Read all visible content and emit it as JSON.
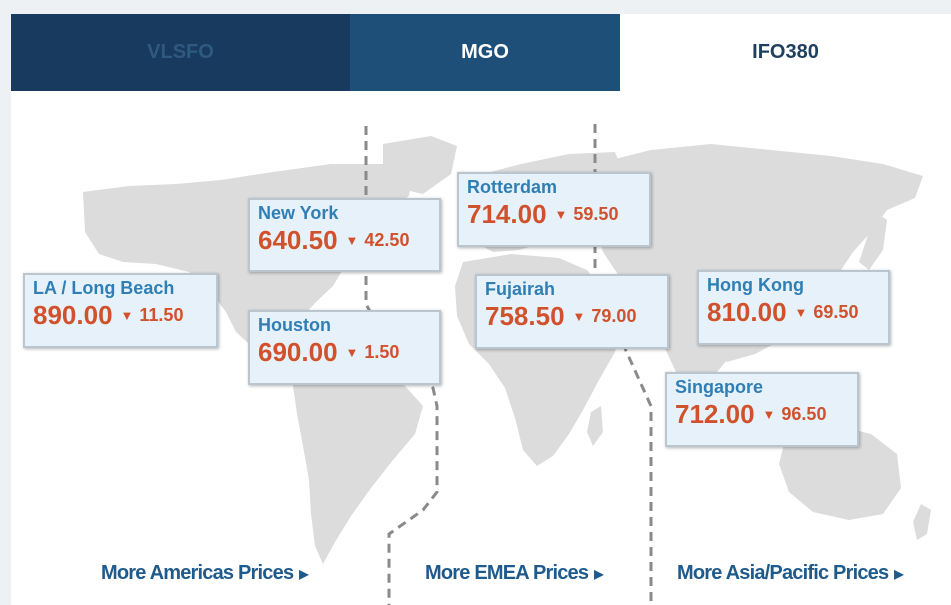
{
  "tabs": [
    {
      "label": "VLSFO"
    },
    {
      "label": "MGO"
    },
    {
      "label": "IFO380"
    }
  ],
  "ports": {
    "la_long_beach": {
      "name": "LA / Long Beach",
      "price": "890.00",
      "change": "11.50"
    },
    "new_york": {
      "name": "New York",
      "price": "640.50",
      "change": "42.50"
    },
    "houston": {
      "name": "Houston",
      "price": "690.00",
      "change": "1.50"
    },
    "rotterdam": {
      "name": "Rotterdam",
      "price": "714.00",
      "change": "59.50"
    },
    "fujairah": {
      "name": "Fujairah",
      "price": "758.50",
      "change": "79.00"
    },
    "hong_kong": {
      "name": "Hong Kong",
      "price": "810.00",
      "change": "69.50"
    },
    "singapore": {
      "name": "Singapore",
      "price": "712.00",
      "change": "96.50"
    }
  },
  "links": {
    "americas": "More Americas Prices",
    "emea": "More EMEA Prices",
    "asia_pacific": "More Asia/Pacific Prices"
  },
  "icons": {
    "down_arrow": "triangle-down-icon",
    "link_arrow": "triangle-right-icon"
  },
  "colors": {
    "tab_active": "#1e4f79",
    "tab_dark": "#173a5e",
    "city_blue": "#2f7fb5",
    "price_orange": "#d0512b",
    "link_blue": "#1f5a8c",
    "card_bg": "#e6f1f9",
    "map_gray": "#dcdcdc"
  }
}
